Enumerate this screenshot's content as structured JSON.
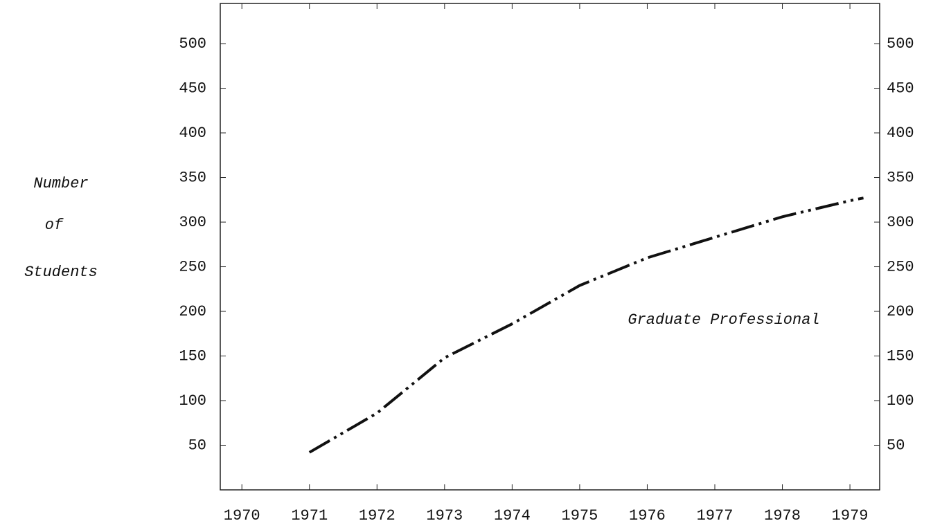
{
  "chart_data": {
    "type": "line",
    "ylabel": [
      "Number",
      "of",
      "Students"
    ],
    "annotation": "Graduate Professional",
    "x": [
      1971,
      1972,
      1973,
      1974,
      1975,
      1976,
      1977,
      1978,
      1979,
      1979.2
    ],
    "series": [
      {
        "name": "Graduate Professional",
        "color": "#111111",
        "values": [
          42,
          86,
          148,
          186,
          229,
          260,
          283,
          306,
          324,
          327
        ]
      }
    ],
    "xlim": [
      1969.68,
      1979.44
    ],
    "xticks": [
      1970,
      1971,
      1972,
      1973,
      1974,
      1975,
      1976,
      1977,
      1978,
      1979
    ],
    "ylim": [
      0,
      545
    ],
    "yticks": [
      50,
      100,
      150,
      200,
      250,
      300,
      350,
      400,
      450,
      500
    ],
    "y2lim": [
      0,
      545
    ],
    "y2ticks": [
      50,
      100,
      150,
      200,
      250,
      300,
      350,
      400,
      450,
      500
    ]
  }
}
